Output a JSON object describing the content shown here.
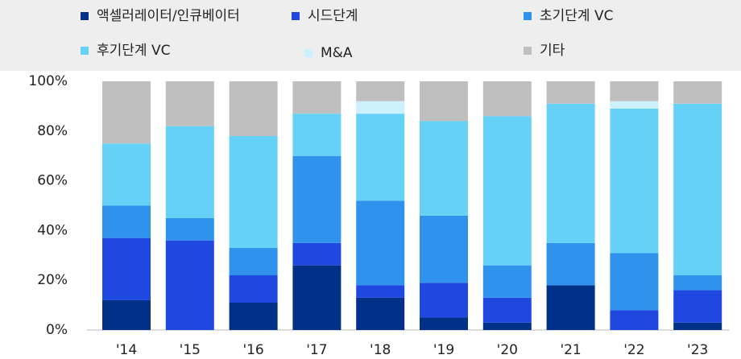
{
  "chart_data": {
    "type": "stacked_bar",
    "categories": [
      "'14",
      "'15",
      "'16",
      "'17",
      "'18",
      "'19",
      "'20",
      "'21",
      "'22",
      "'23"
    ],
    "series": [
      {
        "name": "액셀러레이터/인큐베이터",
        "color": "#003087",
        "values": [
          12,
          0,
          11,
          26,
          13,
          5,
          3,
          18,
          0,
          3
        ]
      },
      {
        "name": "시드단계",
        "color": "#1f48e0",
        "values": [
          25,
          36,
          11,
          9,
          5,
          14,
          10,
          0,
          8,
          13
        ]
      },
      {
        "name": "초기단계 VC",
        "color": "#2f92ec",
        "values": [
          13,
          9,
          11,
          35,
          34,
          27,
          13,
          17,
          23,
          6
        ]
      },
      {
        "name": "후기단계 VC",
        "color": "#66d1f7",
        "values": [
          25,
          37,
          45,
          17,
          35,
          38,
          60,
          56,
          58,
          69
        ]
      },
      {
        "name": "M&A",
        "color": "#ccf0fc",
        "values": [
          0,
          0,
          0,
          0,
          5,
          0,
          0,
          0,
          3,
          0
        ]
      },
      {
        "name": "기타",
        "color": "#bfbfbf",
        "values": [
          25,
          18,
          22,
          13,
          8,
          16,
          14,
          9,
          8,
          9
        ]
      }
    ],
    "ylim": [
      0,
      100
    ],
    "yticks": [
      {
        "value": 0,
        "label": "0%"
      },
      {
        "value": 20,
        "label": "20%"
      },
      {
        "value": 40,
        "label": "40%"
      },
      {
        "value": 60,
        "label": "60%"
      },
      {
        "value": 80,
        "label": "80%"
      },
      {
        "value": 100,
        "label": "100%"
      }
    ]
  }
}
